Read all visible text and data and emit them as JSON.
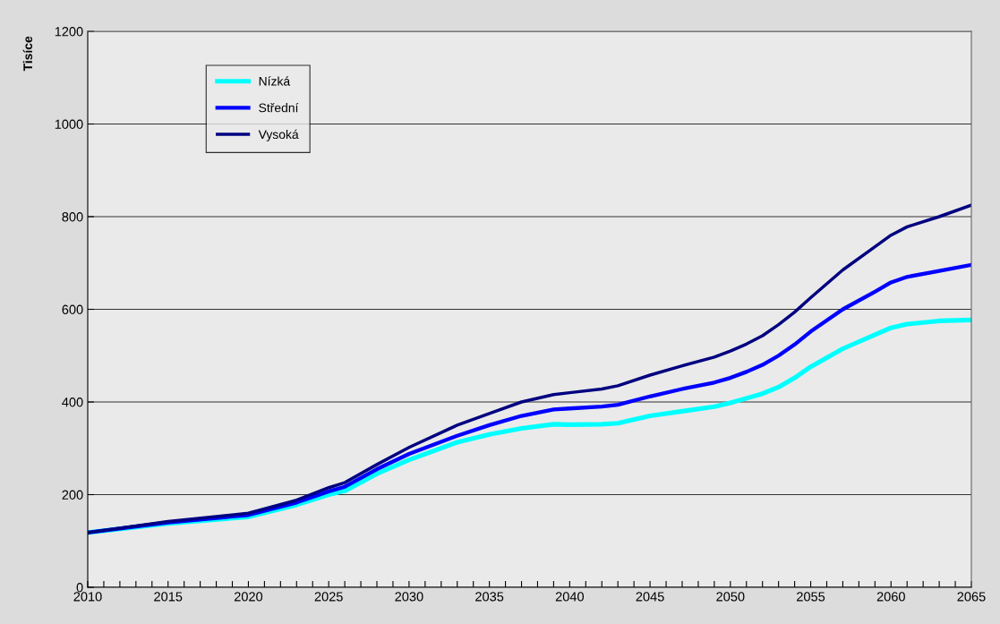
{
  "chart_data": {
    "type": "line",
    "ylabel": "Tisíce",
    "x": [
      2010,
      2015,
      2020,
      2023,
      2025,
      2026,
      2028,
      2030,
      2033,
      2035,
      2037,
      2039,
      2040,
      2042,
      2043,
      2045,
      2047,
      2049,
      2050,
      2051,
      2052,
      2053,
      2054,
      2055,
      2057,
      2059,
      2060,
      2061,
      2063,
      2065
    ],
    "series": [
      {
        "name": "Nízká",
        "color": "#00ffff",
        "values": [
          118,
          138,
          152,
          178,
          200,
          208,
          245,
          275,
          313,
          330,
          343,
          352,
          351,
          352,
          354,
          370,
          380,
          390,
          398,
          408,
          418,
          432,
          452,
          476,
          515,
          545,
          560,
          568,
          575,
          577
        ]
      },
      {
        "name": "Střední",
        "color": "#0000ff",
        "values": [
          118,
          140,
          156,
          183,
          207,
          217,
          255,
          288,
          327,
          350,
          370,
          384,
          386,
          390,
          394,
          412,
          428,
          442,
          452,
          465,
          480,
          500,
          524,
          552,
          600,
          638,
          658,
          670,
          683,
          696
        ]
      },
      {
        "name": "Vysoká",
        "color": "#000080",
        "values": [
          118,
          142,
          160,
          188,
          215,
          226,
          265,
          302,
          350,
          375,
          400,
          416,
          420,
          428,
          435,
          458,
          478,
          497,
          510,
          525,
          543,
          567,
          594,
          625,
          685,
          735,
          760,
          778,
          800,
          825
        ]
      }
    ],
    "xlim": [
      2010,
      2065
    ],
    "xticks": [
      2010,
      {
        "value": 2011,
        "label": null
      },
      {
        "value": 2012,
        "label": null
      },
      {
        "value": 2013,
        "label": null
      },
      {
        "value": 2014,
        "label": null
      },
      2015,
      {
        "value": 2016,
        "label": null
      },
      {
        "value": 2017,
        "label": null
      },
      {
        "value": 2018,
        "label": null
      },
      {
        "value": 2019,
        "label": null
      },
      2020,
      {
        "value": 2021,
        "label": null
      },
      {
        "value": 2022,
        "label": null
      },
      {
        "value": 2023,
        "label": null
      },
      {
        "value": 2024,
        "label": null
      },
      2025,
      {
        "value": 2026,
        "label": null
      },
      {
        "value": 2027,
        "label": null
      },
      {
        "value": 2028,
        "label": null
      },
      {
        "value": 2029,
        "label": null
      },
      2030,
      {
        "value": 2031,
        "label": null
      },
      {
        "value": 2032,
        "label": null
      },
      {
        "value": 2033,
        "label": null
      },
      {
        "value": 2034,
        "label": null
      },
      2035,
      {
        "value": 2036,
        "label": null
      },
      {
        "value": 2037,
        "label": null
      },
      {
        "value": 2038,
        "label": null
      },
      {
        "value": 2039,
        "label": null
      },
      2040,
      {
        "value": 2041,
        "label": null
      },
      {
        "value": 2042,
        "label": null
      },
      {
        "value": 2043,
        "label": null
      },
      {
        "value": 2044,
        "label": null
      },
      2045,
      {
        "value": 2046,
        "label": null
      },
      {
        "value": 2047,
        "label": null
      },
      {
        "value": 2048,
        "label": null
      },
      {
        "value": 2049,
        "label": null
      },
      2050,
      {
        "value": 2051,
        "label": null
      },
      {
        "value": 2052,
        "label": null
      },
      {
        "value": 2053,
        "label": null
      },
      {
        "value": 2054,
        "label": null
      },
      2055,
      {
        "value": 2056,
        "label": null
      },
      {
        "value": 2057,
        "label": null
      },
      {
        "value": 2058,
        "label": null
      },
      {
        "value": 2059,
        "label": null
      },
      2060,
      {
        "value": 2061,
        "label": null
      },
      {
        "value": 2062,
        "label": null
      },
      {
        "value": 2063,
        "label": null
      },
      {
        "value": 2064,
        "label": null
      },
      2065
    ],
    "ylim": [
      0,
      1200
    ],
    "yticks": [
      0,
      200,
      400,
      600,
      800,
      1000,
      1200
    ],
    "grid": "y",
    "legend": "top left",
    "marker": "none",
    "line_style": "solid"
  }
}
